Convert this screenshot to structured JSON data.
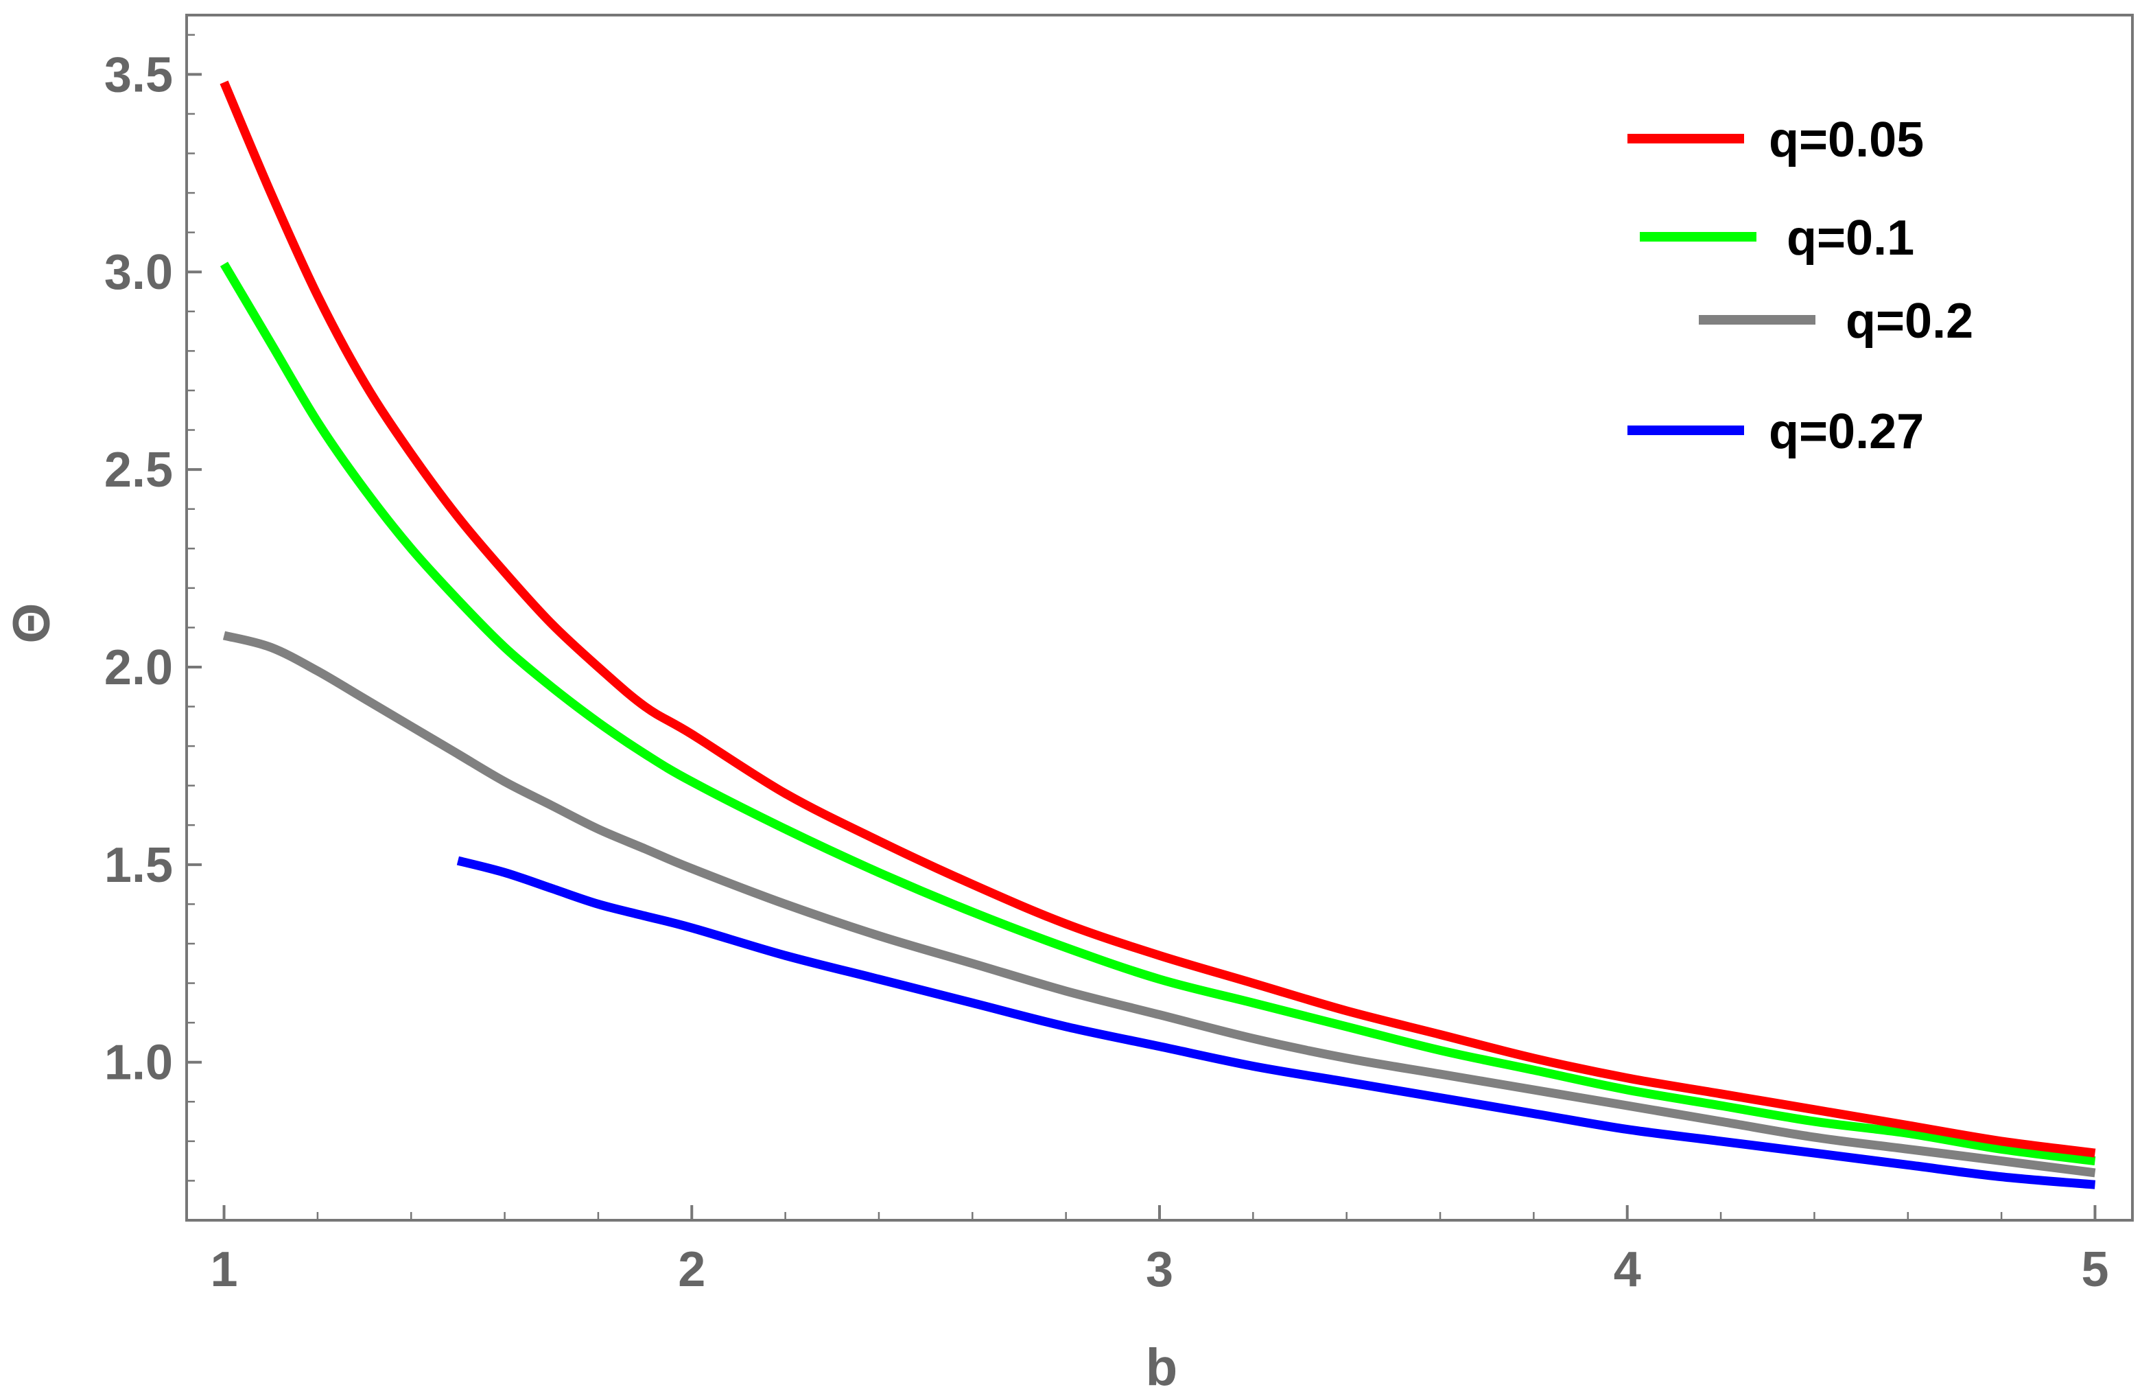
{
  "chart_data": {
    "type": "line",
    "xlabel": "b",
    "ylabel": "Θ",
    "xlim": [
      0.92,
      5.08
    ],
    "ylim": [
      0.6,
      3.65
    ],
    "x_ticks": [
      1,
      2,
      3,
      4,
      5
    ],
    "x_tick_labels": [
      "1",
      "2",
      "3",
      "4",
      "5"
    ],
    "y_ticks": [
      1.0,
      1.5,
      2.0,
      2.5,
      3.0,
      3.5
    ],
    "y_tick_labels": [
      "1.0",
      "1.5",
      "2.0",
      "2.5",
      "3.0",
      "3.5"
    ],
    "grid": false,
    "legend_position": "top-right",
    "series": [
      {
        "name": "q=0.05",
        "color": "#ff0000",
        "x": [
          1.0,
          1.1,
          1.2,
          1.3,
          1.4,
          1.5,
          1.6,
          1.7,
          1.8,
          1.9,
          2.0,
          2.2,
          2.4,
          2.6,
          2.8,
          3.0,
          3.2,
          3.4,
          3.6,
          3.8,
          4.0,
          4.2,
          4.4,
          4.6,
          4.8,
          5.0
        ],
        "y": [
          3.48,
          3.2,
          2.94,
          2.72,
          2.54,
          2.38,
          2.24,
          2.11,
          2.0,
          1.9,
          1.83,
          1.68,
          1.56,
          1.45,
          1.35,
          1.27,
          1.2,
          1.13,
          1.07,
          1.01,
          0.96,
          0.92,
          0.88,
          0.84,
          0.8,
          0.77
        ]
      },
      {
        "name": "q=0.1",
        "color": "#00ff00",
        "x": [
          1.0,
          1.1,
          1.2,
          1.3,
          1.4,
          1.5,
          1.6,
          1.7,
          1.8,
          1.9,
          2.0,
          2.2,
          2.4,
          2.6,
          2.8,
          3.0,
          3.2,
          3.4,
          3.6,
          3.8,
          4.0,
          4.2,
          4.4,
          4.6,
          4.8,
          5.0
        ],
        "y": [
          3.02,
          2.82,
          2.62,
          2.45,
          2.3,
          2.17,
          2.05,
          1.95,
          1.86,
          1.78,
          1.71,
          1.59,
          1.48,
          1.38,
          1.29,
          1.21,
          1.15,
          1.09,
          1.03,
          0.98,
          0.93,
          0.89,
          0.85,
          0.82,
          0.78,
          0.75
        ]
      },
      {
        "name": "q=0.2",
        "color": "#808080",
        "x": [
          1.0,
          1.1,
          1.2,
          1.3,
          1.4,
          1.5,
          1.6,
          1.7,
          1.8,
          1.9,
          2.0,
          2.2,
          2.4,
          2.6,
          2.8,
          3.0,
          3.2,
          3.4,
          3.6,
          3.8,
          4.0,
          4.2,
          4.4,
          4.6,
          4.8,
          5.0
        ],
        "y": [
          2.08,
          2.05,
          1.99,
          1.92,
          1.85,
          1.78,
          1.71,
          1.65,
          1.59,
          1.54,
          1.49,
          1.4,
          1.32,
          1.25,
          1.18,
          1.12,
          1.06,
          1.01,
          0.97,
          0.93,
          0.89,
          0.85,
          0.81,
          0.78,
          0.75,
          0.72
        ]
      },
      {
        "name": "q=0.27",
        "color": "#0000ff",
        "x": [
          1.5,
          1.6,
          1.7,
          1.8,
          1.9,
          2.0,
          2.2,
          2.4,
          2.6,
          2.8,
          3.0,
          3.2,
          3.4,
          3.6,
          3.8,
          4.0,
          4.2,
          4.4,
          4.6,
          4.8,
          5.0
        ],
        "y": [
          1.51,
          1.48,
          1.44,
          1.4,
          1.37,
          1.34,
          1.27,
          1.21,
          1.15,
          1.09,
          1.04,
          0.99,
          0.95,
          0.91,
          0.87,
          0.83,
          0.8,
          0.77,
          0.74,
          0.71,
          0.69
        ]
      }
    ]
  }
}
